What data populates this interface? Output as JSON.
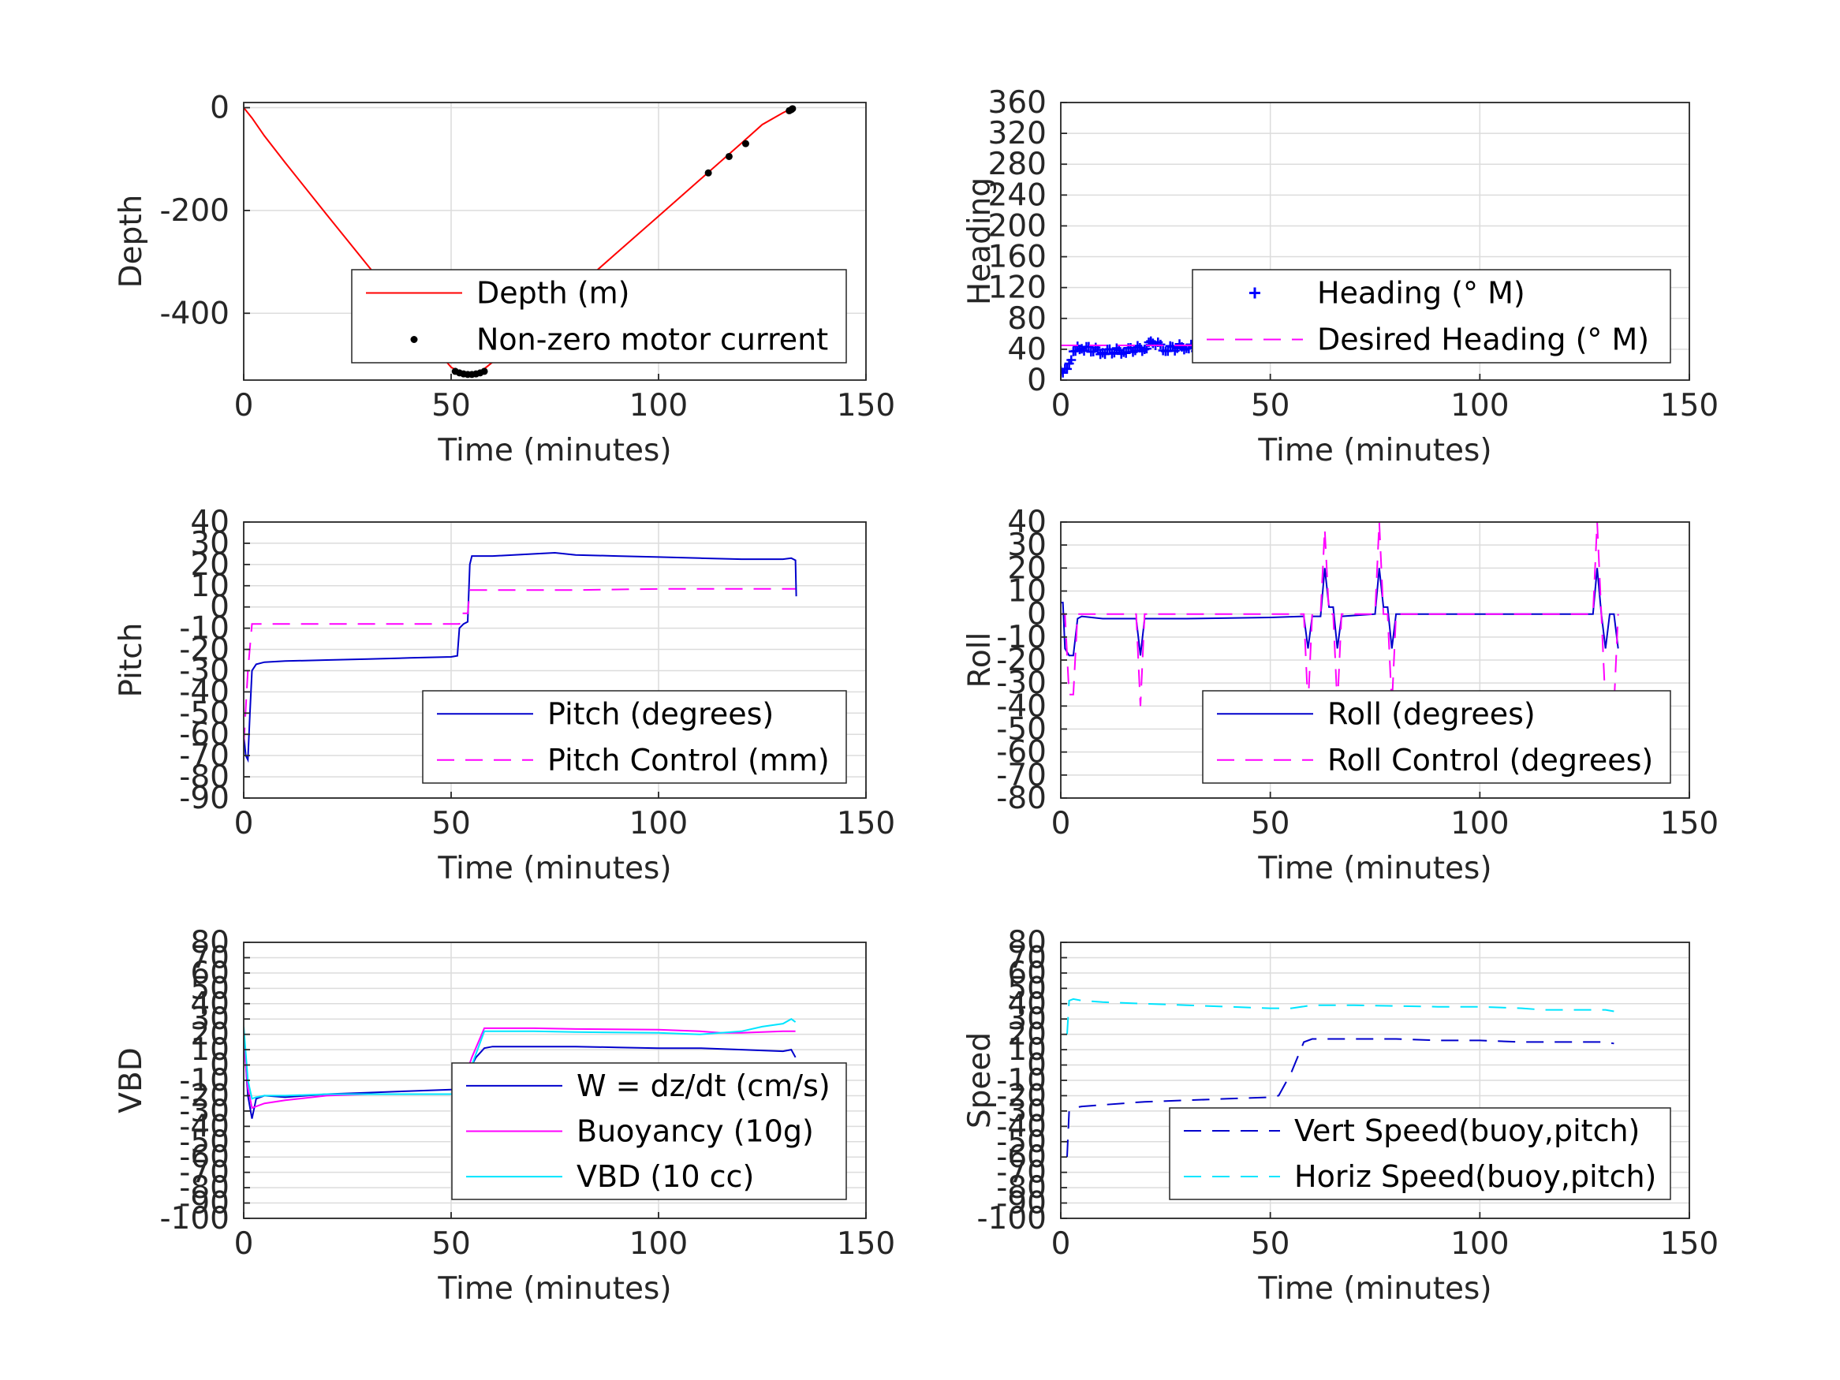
{
  "chart_data": [
    {
      "type": "line",
      "xlabel": "Time (minutes)",
      "ylabel": "Depth",
      "xlim": [
        0,
        150
      ],
      "ylim": [
        -530,
        10
      ],
      "xticks": [
        0,
        50,
        100,
        150
      ],
      "yticks": [
        0,
        -200,
        -400
      ],
      "grid": true,
      "legend_position": "lower-right",
      "series": [
        {
          "name": "Depth (m)",
          "style": "solid",
          "color": "#ff0000",
          "x": [
            0,
            2,
            5,
            10,
            20,
            30,
            40,
            45,
            50,
            52,
            54,
            56,
            57,
            58,
            60,
            70,
            80,
            90,
            100,
            110,
            120,
            125,
            130,
            132
          ],
          "y": [
            0,
            -20,
            -55,
            -107,
            -208,
            -308,
            -408,
            -458,
            -505,
            -514,
            -518,
            -518,
            -514,
            -508,
            -495,
            -424,
            -353,
            -282,
            -211,
            -140,
            -69,
            -33,
            -10,
            -2
          ]
        },
        {
          "name": "Non-zero motor current",
          "style": "markers",
          "color": "#000000",
          "x": [
            51,
            52,
            53,
            54,
            55,
            56,
            57,
            58,
            112,
            117,
            121,
            131.5,
            132,
            132.3
          ],
          "y": [
            -513,
            -516,
            -518,
            -519,
            -519,
            -518,
            -516,
            -513,
            -127,
            -95,
            -70,
            -6,
            -4,
            -2
          ]
        }
      ]
    },
    {
      "type": "line",
      "xlabel": "Time (minutes)",
      "ylabel": "Heading",
      "xlim": [
        0,
        150
      ],
      "ylim": [
        0,
        360
      ],
      "xticks": [
        0,
        50,
        100,
        150
      ],
      "yticks": [
        0,
        40,
        80,
        120,
        160,
        200,
        240,
        280,
        320,
        360
      ],
      "grid": true,
      "legend_position": "lower-right",
      "series": [
        {
          "name": "Heading (° M)",
          "style": "plus-markers",
          "color": "#0000ff",
          "x": [
            0,
            1,
            2,
            3,
            4,
            5,
            10,
            15,
            20,
            22,
            25,
            30,
            35,
            40,
            45,
            50,
            55,
            58,
            62,
            65,
            70,
            75,
            78,
            80,
            85,
            90,
            95,
            100,
            105,
            110,
            115,
            120,
            125,
            128,
            130,
            131,
            132,
            133
          ],
          "y": [
            12,
            15,
            22,
            38,
            45,
            42,
            37,
            38,
            42,
            50,
            40,
            44,
            38,
            37,
            36,
            37,
            36,
            44,
            38,
            48,
            37,
            42,
            55,
            38,
            37,
            36,
            38,
            37,
            40,
            38,
            42,
            40,
            37,
            36,
            42,
            65,
            75,
            55
          ]
        },
        {
          "name": "Desired Heading (° M)",
          "style": "dashed",
          "color": "#ff00ff",
          "x": [
            0,
            133
          ],
          "y": [
            45,
            45
          ]
        }
      ]
    },
    {
      "type": "line",
      "xlabel": "Time (minutes)",
      "ylabel": "Pitch",
      "xlim": [
        0,
        150
      ],
      "ylim": [
        -90,
        40
      ],
      "xticks": [
        0,
        50,
        100,
        150
      ],
      "yticks": [
        40,
        30,
        20,
        10,
        0,
        -10,
        -20,
        -30,
        -40,
        -50,
        -60,
        -70,
        -80,
        -90
      ],
      "grid": true,
      "legend_position": "lower-right",
      "series": [
        {
          "name": "Pitch (degrees)",
          "style": "solid",
          "color": "#0000cc",
          "x": [
            0,
            0.5,
            1,
            1.5,
            2,
            3,
            5,
            10,
            20,
            30,
            40,
            50,
            51.5,
            52,
            53,
            54,
            54.5,
            55,
            56,
            60,
            70,
            75,
            80,
            90,
            100,
            110,
            120,
            130,
            132,
            133,
            133.2
          ],
          "y": [
            -60,
            -70,
            -72,
            -50,
            -30,
            -27,
            -26,
            -25.5,
            -25,
            -24.5,
            -24,
            -23.5,
            -23,
            -10,
            -8,
            -7,
            20,
            24,
            24,
            24,
            25,
            25.5,
            24.5,
            24,
            23.5,
            23,
            22.5,
            22.5,
            23,
            22,
            5
          ]
        },
        {
          "name": "Pitch Control (mm)",
          "style": "dashed",
          "color": "#ff00ff",
          "x": [
            0,
            1,
            2,
            5,
            20,
            40,
            52,
            52.5,
            54,
            54.5,
            60,
            80,
            100,
            120,
            133
          ],
          "y": [
            -65,
            -30,
            -8,
            -8,
            -8,
            -8,
            -8,
            -3,
            -3,
            8,
            8,
            8,
            8.5,
            8.5,
            8.5
          ]
        }
      ]
    },
    {
      "type": "line",
      "xlabel": "Time (minutes)",
      "ylabel": "Roll",
      "xlim": [
        0,
        150
      ],
      "ylim": [
        -80,
        40
      ],
      "xticks": [
        0,
        50,
        100,
        150
      ],
      "yticks": [
        40,
        30,
        20,
        10,
        0,
        -10,
        -20,
        -30,
        -40,
        -50,
        -60,
        -70,
        -80
      ],
      "grid": true,
      "legend_position": "lower-right",
      "series": [
        {
          "name": "Roll (degrees)",
          "style": "solid",
          "color": "#0000cc",
          "x": [
            0,
            0.5,
            1,
            2,
            3,
            4,
            5,
            10,
            18,
            19,
            20,
            30,
            50,
            58,
            59,
            60,
            62,
            63,
            64,
            65,
            66,
            67,
            75,
            76,
            77,
            78,
            79,
            80,
            100,
            120,
            127,
            128,
            129,
            130,
            131,
            132,
            133
          ],
          "y": [
            5,
            5,
            -15,
            -18,
            -18,
            -2,
            -1,
            -2,
            -2,
            -18,
            -2,
            -2,
            -1.5,
            -1,
            -15,
            -1,
            -1,
            20,
            3,
            3,
            -15,
            -1,
            0,
            20,
            3,
            3,
            -15,
            0,
            0,
            0,
            0,
            20,
            0,
            -15,
            0,
            0,
            -15
          ]
        },
        {
          "name": "Roll Control (degrees)",
          "style": "dashed",
          "color": "#ff00ff",
          "x": [
            0,
            1,
            2,
            3,
            4,
            5,
            18,
            19,
            20,
            50,
            58,
            59,
            60,
            62,
            63,
            64,
            65,
            66,
            67,
            75,
            76,
            77,
            78,
            79,
            80,
            120,
            127,
            128,
            129,
            130,
            131,
            132,
            133
          ],
          "y": [
            0,
            0,
            -35,
            -35,
            0,
            0,
            0,
            -40,
            0,
            0,
            0,
            -40,
            0,
            0,
            37,
            0,
            0,
            -40,
            0,
            0,
            40,
            0,
            0,
            -40,
            0,
            0,
            0,
            40,
            0,
            -40,
            -40,
            -40,
            0
          ]
        }
      ]
    },
    {
      "type": "line",
      "xlabel": "Time (minutes)",
      "ylabel": "VBD",
      "xlim": [
        0,
        150
      ],
      "ylim": [
        -100,
        80
      ],
      "xticks": [
        0,
        50,
        100,
        150
      ],
      "yticks": [
        80,
        70,
        60,
        50,
        40,
        30,
        20,
        10,
        0,
        -10,
        -20,
        -30,
        -40,
        -50,
        -60,
        -70,
        -80,
        -90,
        -100
      ],
      "ytick_labels": [
        "80",
        "70",
        "60",
        "50",
        "40",
        "30",
        "20",
        "10",
        "0",
        "-10",
        "-20",
        "-30",
        "-40",
        "-50",
        "-60",
        "-70",
        "-80",
        "-90",
        "-100"
      ],
      "grid": true,
      "legend_position": "lower-right",
      "series": [
        {
          "name": "W = dz/dt (cm/s)",
          "style": "solid",
          "color": "#0000cc",
          "x": [
            0,
            1,
            2,
            3,
            5,
            10,
            20,
            30,
            40,
            50,
            52,
            54,
            56,
            58,
            60,
            70,
            80,
            90,
            100,
            110,
            120,
            130,
            132,
            133
          ],
          "y": [
            20,
            -20,
            -35,
            -22,
            -20,
            -21,
            -19,
            -18,
            -17,
            -16,
            -16,
            -5,
            5,
            11,
            12,
            12,
            12,
            11.5,
            11,
            11,
            10,
            9,
            10,
            5
          ]
        },
        {
          "name": "Buoyancy (10g)",
          "style": "solid",
          "color": "#ff00ff",
          "x": [
            0,
            1,
            2,
            3,
            5,
            10,
            20,
            30,
            40,
            50,
            52,
            55,
            58,
            60,
            70,
            80,
            100,
            110,
            115,
            120,
            125,
            130,
            132,
            133
          ],
          "y": [
            15,
            -15,
            -28,
            -27,
            -25,
            -23,
            -20,
            -19,
            -19,
            -19,
            -18,
            5,
            24,
            24,
            24,
            23.5,
            23,
            22,
            21,
            21,
            21.5,
            22,
            22,
            22
          ]
        },
        {
          "name": "VBD (10 cc)",
          "style": "solid",
          "color": "#00e5ff",
          "x": [
            0,
            1,
            2,
            3,
            5,
            10,
            20,
            30,
            40,
            50,
            52,
            55,
            58,
            60,
            70,
            80,
            100,
            110,
            115,
            120,
            125,
            130,
            132,
            133
          ],
          "y": [
            25,
            -10,
            -22,
            -21,
            -20,
            -20,
            -19,
            -19,
            -19,
            -19,
            -19,
            0,
            22,
            22,
            22,
            21.5,
            21,
            20,
            21,
            22,
            25,
            27,
            30,
            28
          ]
        }
      ]
    },
    {
      "type": "line",
      "xlabel": "Time (minutes)",
      "ylabel": "Speed",
      "xlim": [
        0,
        150
      ],
      "ylim": [
        -100,
        80
      ],
      "xticks": [
        0,
        50,
        100,
        150
      ],
      "yticks": [
        80,
        70,
        60,
        50,
        40,
        30,
        20,
        10,
        0,
        -10,
        -20,
        -30,
        -40,
        -50,
        -60,
        -70,
        -80,
        -90,
        -100
      ],
      "ytick_labels": [
        "80",
        "70",
        "60",
        "50",
        "40",
        "30",
        "20",
        "10",
        "0",
        "-10",
        "-20",
        "-30",
        "-40",
        "-50",
        "-60",
        "-70",
        "-80",
        "-90",
        "-100"
      ],
      "grid": true,
      "legend_position": "lower-right",
      "series": [
        {
          "name": "Vert Speed(buoy,pitch)",
          "style": "dashed",
          "color": "#0000cc",
          "x": [
            1.5,
            2,
            3,
            5,
            10,
            20,
            30,
            40,
            50,
            52,
            55,
            58,
            60,
            70,
            80,
            90,
            100,
            110,
            120,
            130,
            132
          ],
          "y": [
            -60,
            -30,
            -28,
            -27,
            -26,
            -24,
            -23,
            -22,
            -21,
            -20,
            -5,
            15,
            17,
            17,
            17,
            16,
            16,
            15,
            15,
            15,
            14
          ]
        },
        {
          "name": "Horiz Speed(buoy,pitch)",
          "style": "dashed",
          "color": "#00e5ff",
          "x": [
            1.5,
            2,
            3,
            5,
            10,
            20,
            30,
            40,
            50,
            55,
            60,
            70,
            80,
            90,
            100,
            110,
            115,
            120,
            125,
            130,
            132
          ],
          "y": [
            20,
            42,
            43,
            42,
            41,
            40,
            39,
            38,
            37,
            37,
            39,
            39,
            38.5,
            38,
            38,
            37,
            36,
            36,
            36,
            36,
            35
          ]
        }
      ]
    }
  ]
}
